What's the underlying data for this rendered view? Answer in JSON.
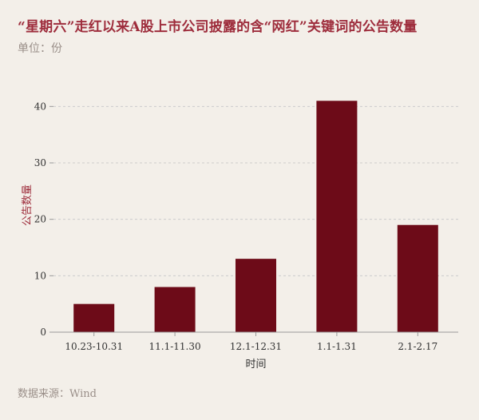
{
  "header": {
    "title": "“星期六”走红以来A股上市公司披露的含“网红”关键词的公告数量",
    "subtitle": "单位：份"
  },
  "footer": {
    "source": "数据来源：Wind"
  },
  "chart_data": {
    "type": "bar",
    "categories": [
      "10.23-10.31",
      "11.1-11.30",
      "12.1-12.31",
      "1.1-1.31",
      "2.1-2.17"
    ],
    "values": [
      5,
      8,
      13,
      41,
      19
    ],
    "xlabel": "时间",
    "ylabel": "公告数量",
    "ylim": [
      0,
      45
    ],
    "yticks": [
      0,
      10,
      20,
      30,
      40
    ],
    "grid": true,
    "bar_color": "#6d0b18",
    "axis_color": "#999999",
    "grid_color": "#cccccc"
  }
}
